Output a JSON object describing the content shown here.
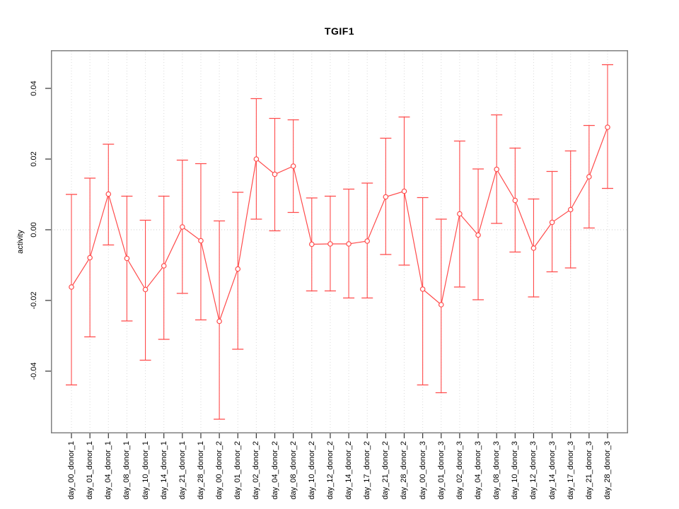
{
  "chart_data": {
    "type": "line",
    "title": "TGIF1",
    "ylabel": "activity",
    "xlabel": "",
    "grid": "vertical-dotted",
    "legend_position": "none",
    "zero_reference_line": true,
    "point_style": "open-circle",
    "error_bars": true,
    "categories": [
      "day_00_donor_1",
      "day_01_donor_1",
      "day_04_donor_1",
      "day_08_donor_1",
      "day_10_donor_1",
      "day_14_donor_1",
      "day_21_donor_1",
      "day_28_donor_1",
      "day_00_donor_2",
      "day_01_donor_2",
      "day_02_donor_2",
      "day_04_donor_2",
      "day_08_donor_2",
      "day_10_donor_2",
      "day_12_donor_2",
      "day_14_donor_2",
      "day_17_donor_2",
      "day_21_donor_2",
      "day_28_donor_2",
      "day_00_donor_3",
      "day_01_donor_3",
      "day_02_donor_3",
      "day_04_donor_3",
      "day_08_donor_3",
      "day_10_donor_3",
      "day_12_donor_3",
      "day_14_donor_3",
      "day_17_donor_3",
      "day_21_donor_3",
      "day_28_donor_3"
    ],
    "series": [
      {
        "name": "activity",
        "values": [
          -0.0162,
          -0.0079,
          0.0101,
          -0.0081,
          -0.0169,
          -0.0102,
          0.0008,
          -0.0031,
          -0.0259,
          -0.0111,
          0.02,
          0.0157,
          0.018,
          -0.0041,
          -0.004,
          -0.004,
          -0.0032,
          0.0093,
          0.0109,
          -0.0168,
          -0.0212,
          0.0045,
          -0.0015,
          0.0171,
          0.0083,
          -0.0052,
          0.0021,
          0.0057,
          0.015,
          0.029
        ],
        "error_upper": [
          0.01,
          0.0146,
          0.0242,
          0.0095,
          0.0027,
          0.0095,
          0.0197,
          0.0187,
          0.0025,
          0.0106,
          0.0371,
          0.0315,
          0.0311,
          0.009,
          0.0095,
          0.0115,
          0.0132,
          0.0259,
          0.0319,
          0.0091,
          0.003,
          0.0251,
          0.0172,
          0.0325,
          0.0231,
          0.0087,
          0.0165,
          0.0223,
          0.0295,
          0.0467
        ],
        "error_lower": [
          -0.0439,
          -0.0303,
          -0.0043,
          -0.0258,
          -0.0369,
          -0.031,
          -0.018,
          -0.0255,
          -0.0536,
          -0.0338,
          0.003,
          -0.0003,
          0.0049,
          -0.0173,
          -0.0173,
          -0.0193,
          -0.0193,
          -0.007,
          -0.01,
          -0.0439,
          -0.0461,
          -0.0162,
          -0.0198,
          0.0018,
          -0.0063,
          -0.019,
          -0.0119,
          -0.0108,
          0.0005,
          0.0117
        ]
      }
    ],
    "yticks": [
      0.04,
      0.02,
      0.0,
      -0.02,
      -0.04
    ],
    "ytick_labels": [
      "0.04",
      "0.02",
      "0.00",
      "-0.02",
      "-0.04"
    ],
    "ylim": [
      -0.0576,
      0.0508
    ],
    "colors": {
      "series": "#ff4b4b",
      "point_fill": "#ffffff",
      "grid": "#d9d9d9",
      "zero_line": "#cccccc",
      "box": "#808080",
      "tick": "#333333",
      "text": "#000000",
      "background": "#ffffff"
    }
  }
}
